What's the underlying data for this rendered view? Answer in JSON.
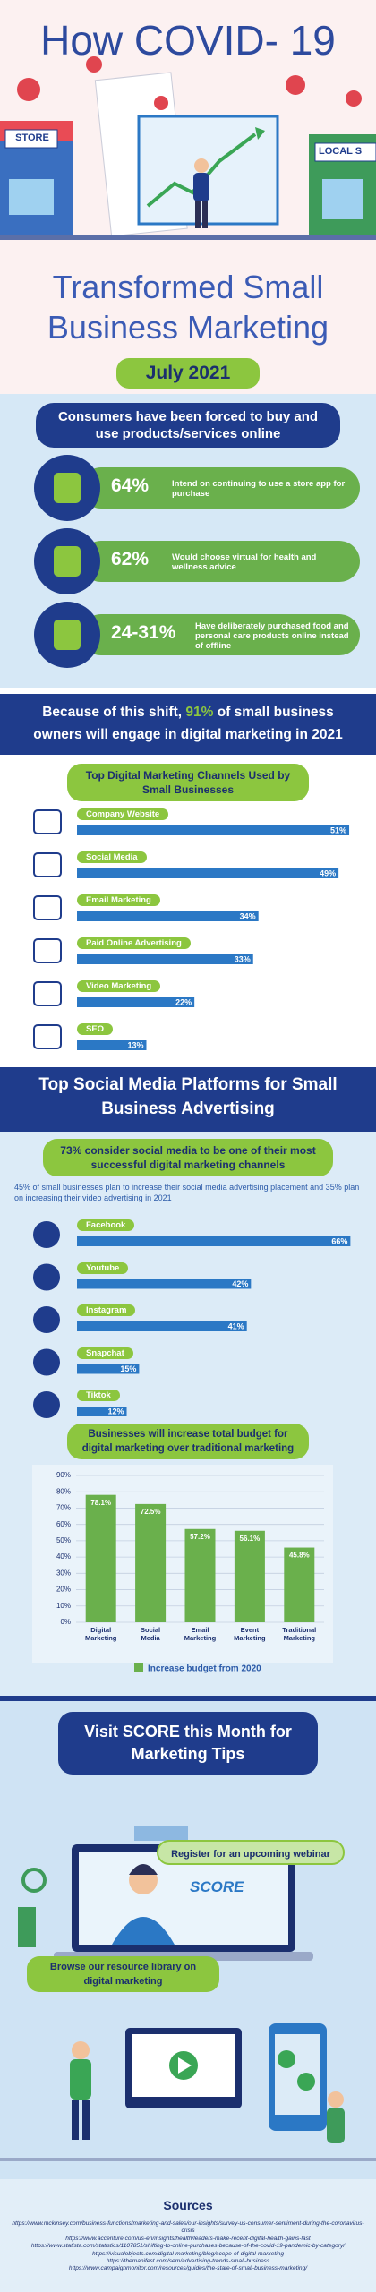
{
  "header": {
    "title": "How COVID- 19",
    "store_sign": "STORE",
    "local_sign": "LOCAL S",
    "subtitle_lines": [
      "Transformed Small",
      "Business Marketing"
    ],
    "date": "July 2021"
  },
  "consumers": {
    "heading": "Consumers have been forced to buy and use products/services online",
    "stats": [
      {
        "figure": "64%",
        "text": "Intend on continuing to use a store app for purchase"
      },
      {
        "figure": "62%",
        "text": "Would choose virtual for health and wellness advice"
      },
      {
        "figure": "24-31%",
        "text": "Have deliberately purchased food and personal care products online instead of offline"
      }
    ]
  },
  "shift": {
    "banner_parts": [
      "Because of this shift, ",
      "91%",
      " of small business owners will engage in digital marketing in 2021"
    ]
  },
  "social": {
    "heading": "Top Social Media Platforms for Small Business Advertising",
    "highlight": "73% consider social media to be one of their most successful digital marketing channels",
    "note": "45% of small businesses plan to increase their social media advertising placement and 35% plan on increasing their video advertising in 2021",
    "budget_heading": "Businesses will increase total budget for digital marketing over traditional marketing"
  },
  "chart_data": [
    {
      "type": "bar",
      "orientation": "horizontal",
      "title": "Top Digital Marketing Channels Used by Small Businesses",
      "categories": [
        "Company Website",
        "Social Media",
        "Email Marketing",
        "Paid Online Advertising",
        "Video Marketing",
        "SEO"
      ],
      "values": [
        51,
        49,
        34,
        33,
        22,
        13
      ],
      "value_labels": [
        "51%",
        "49%",
        "34%",
        "33%",
        "22%",
        "13%"
      ],
      "color": "#2b78c5",
      "label_color": "#8cc63f",
      "xlim": [
        0,
        52
      ]
    },
    {
      "type": "bar",
      "orientation": "horizontal",
      "categories": [
        "Facebook",
        "Youtube",
        "Instagram",
        "Snapchat",
        "Tiktok"
      ],
      "values": [
        66,
        42,
        41,
        15,
        12
      ],
      "value_labels": [
        "66%",
        "42%",
        "41%",
        "15%",
        "12%"
      ],
      "color": "#2b78c5",
      "label_color": "#8cc63f",
      "xlim": [
        0,
        67
      ]
    },
    {
      "type": "bar",
      "orientation": "vertical",
      "categories": [
        "Digital Marketing",
        "Social Media",
        "Email Marketing",
        "Event Marketing",
        "Traditional Marketing"
      ],
      "series": [
        {
          "name": "Increase budget from 2020",
          "color": "#6ab04c",
          "values": [
            78.1,
            72.5,
            57.2,
            56.1,
            45.8
          ],
          "value_labels": [
            "78.1%",
            "72.5%",
            "57.2%",
            "56.1%",
            "45.8%"
          ]
        }
      ],
      "ylim": [
        0,
        90
      ],
      "yticks": [
        {
          "value": 0,
          "label": "0%"
        },
        {
          "value": 10,
          "label": "10%"
        },
        {
          "value": 20,
          "label": "20%"
        },
        {
          "value": 30,
          "label": "30%"
        },
        {
          "value": 40,
          "label": "40%"
        },
        {
          "value": 50,
          "label": "50%"
        },
        {
          "value": 60,
          "label": "60%"
        },
        {
          "value": 70,
          "label": "70%"
        },
        {
          "value": 80,
          "label": "80%"
        },
        {
          "value": 90,
          "label": "90%"
        }
      ],
      "grid": true
    }
  ],
  "score": {
    "heading_parts": [
      "Visit ",
      "SCORE",
      " this Month for Marketing Tips"
    ],
    "logo": "SCORE",
    "webinar": "Register for an upcoming webinar",
    "library": "Browse our resource library on digital marketing"
  },
  "sources": {
    "title": "Sources",
    "urls": [
      "https://www.mckinsey.com/business-functions/marketing-and-sales/our-insights/survey-us-consumer-sentiment-during-the-coronavirus-crisis",
      "https://www.accenture.com/us-en/insights/health/leaders-make-recent-digital-health-gains-last",
      "https://www.statista.com/statistics/1107851/shifting-to-online-purchases-because-of-the-covid-19-pandemic-by-category/",
      "https://visualobjects.com/digital-marketing/blog/scope-of-digital-marketing",
      "https://themanifest.com/sem/advertising-trends-small-business",
      "https://www.campaignmonitor.com/resources/guides/the-state-of-small-business-marketing/"
    ]
  }
}
